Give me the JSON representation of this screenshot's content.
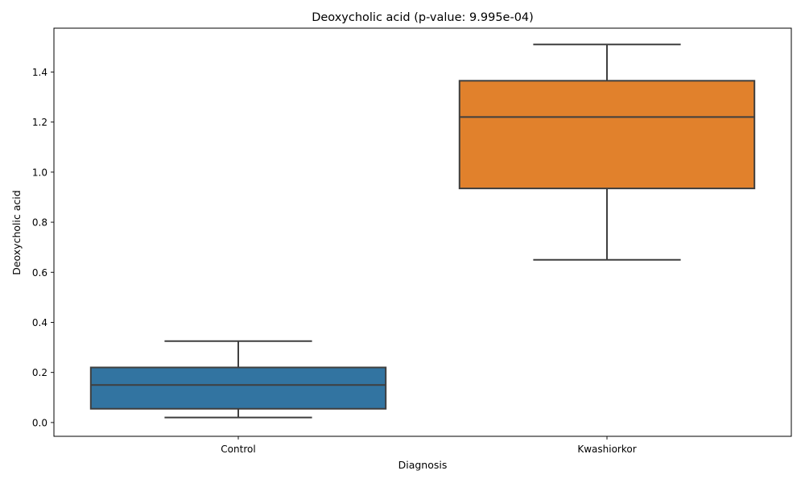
{
  "chart_data": {
    "type": "box",
    "title": "Deoxycholic acid (p-value: 9.995e-04)",
    "xlabel": "Diagnosis",
    "ylabel": "Deoxycholic acid",
    "ylim": [
      -0.055,
      1.575
    ],
    "yticks": [
      "0.0",
      "0.2",
      "0.4",
      "0.6",
      "0.8",
      "1.0",
      "1.2",
      "1.4"
    ],
    "grid": false,
    "categories": [
      "Control",
      "Kwashiorkor"
    ],
    "boxes": [
      {
        "category": "Control",
        "whisker_low": 0.02,
        "q1": 0.055,
        "median": 0.15,
        "q3": 0.22,
        "whisker_high": 0.325,
        "color": "#3274a1"
      },
      {
        "category": "Kwashiorkor",
        "whisker_low": 0.65,
        "q1": 0.935,
        "median": 1.22,
        "q3": 1.365,
        "whisker_high": 1.51,
        "color": "#e1812c"
      }
    ]
  }
}
